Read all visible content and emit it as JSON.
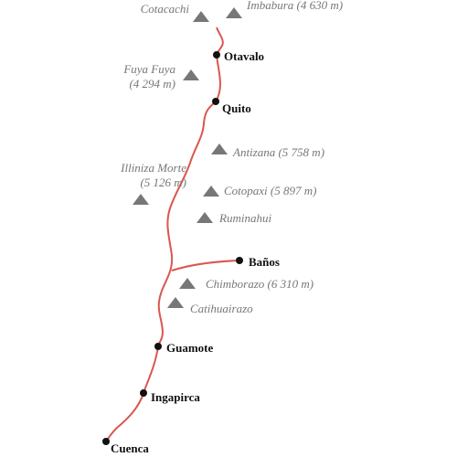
{
  "towns": [
    "Otavalo",
    "Quito",
    "Baños",
    "Guamote",
    "Ingapirca",
    "Cuenca"
  ],
  "mountains": [
    {
      "lines": [
        "Cotacachi"
      ]
    },
    {
      "lines": [
        "Imbabura (4 630 m)"
      ]
    },
    {
      "lines": [
        "Fuya Fuya",
        "(4 294 m)"
      ]
    },
    {
      "lines": [
        "Antizana (5 758 m)"
      ]
    },
    {
      "lines": [
        "Illiniza Morte",
        "(5 126 m)"
      ]
    },
    {
      "lines": [
        "Cotopaxi (5 897 m)"
      ]
    },
    {
      "lines": [
        "Ruminahui"
      ]
    },
    {
      "lines": [
        "Chimborazo (6 310 m)"
      ]
    },
    {
      "lines": [
        "Catihuairazo"
      ]
    }
  ]
}
